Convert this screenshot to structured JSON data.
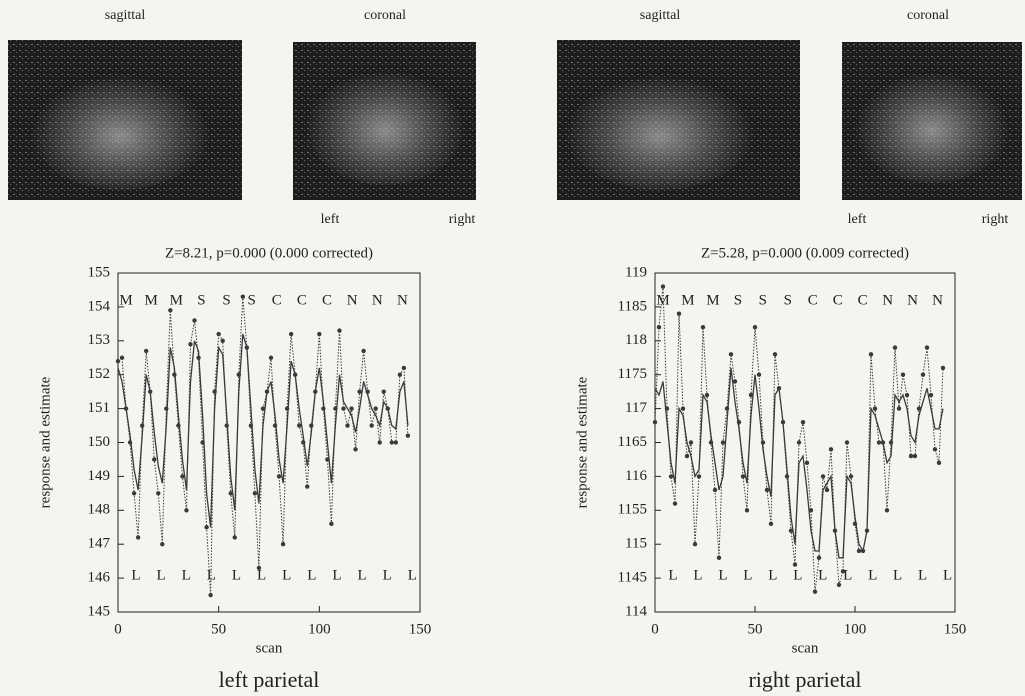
{
  "chart_data": [
    {
      "type": "line",
      "title": "Z=8.21, p=0.000 (0.000 corrected)",
      "xlabel": "scan",
      "ylabel": "response and estimate",
      "caption": "left parietal",
      "xlim": [
        0,
        150
      ],
      "xticks": [
        0,
        50,
        100,
        150
      ],
      "ylim": [
        145,
        155
      ],
      "yticks": [
        145,
        146,
        147,
        148,
        149,
        150,
        151,
        152,
        153,
        154,
        155
      ],
      "top_labels": [
        "M",
        "M",
        "M",
        "S",
        "S",
        "S",
        "C",
        "C",
        "C",
        "N",
        "N",
        "N"
      ],
      "bottom_labels": [
        "L",
        "L",
        "L",
        "L",
        "L",
        "L",
        "L",
        "L",
        "L",
        "L",
        "L",
        "L"
      ],
      "x": [
        0,
        2,
        4,
        6,
        8,
        10,
        12,
        14,
        16,
        18,
        20,
        22,
        24,
        26,
        28,
        30,
        32,
        34,
        36,
        38,
        40,
        42,
        44,
        46,
        48,
        50,
        52,
        54,
        56,
        58,
        60,
        62,
        64,
        66,
        68,
        70,
        72,
        74,
        76,
        78,
        80,
        82,
        84,
        86,
        88,
        90,
        92,
        94,
        96,
        98,
        100,
        102,
        104,
        106,
        108,
        110,
        112,
        114,
        116,
        118,
        120,
        122,
        124,
        126,
        128,
        130,
        132,
        134,
        136,
        138,
        140,
        142,
        144
      ],
      "series": [
        {
          "style": "dotted",
          "color": "#3a3a3a",
          "values": [
            152.4,
            152.5,
            151,
            150,
            148.5,
            147.2,
            150.5,
            152.7,
            151.5,
            149.5,
            148.5,
            147,
            151,
            153.9,
            152,
            150.5,
            149,
            148,
            152.9,
            153.6,
            152.5,
            150,
            147.5,
            145.5,
            151.5,
            153.2,
            153,
            150.5,
            148.5,
            147.2,
            152,
            154.3,
            152.8,
            150.5,
            148.5,
            146.3,
            151,
            151.5,
            152.5,
            150.5,
            149,
            147,
            151,
            153.2,
            152,
            150.5,
            150,
            148.7,
            150.5,
            151.5,
            153.2,
            151,
            149.5,
            147.6,
            151,
            153.3,
            151,
            150.5,
            151,
            149.8,
            151.5,
            152.7,
            151.5,
            150.5,
            151,
            150,
            151.5,
            151,
            150,
            150,
            152,
            152.2,
            150.2
          ]
        },
        {
          "style": "solid",
          "color": "#3a3a3a",
          "values": [
            152.2,
            151.8,
            151,
            150.2,
            149.2,
            148.6,
            150.2,
            152,
            151.5,
            150.3,
            149.3,
            148.8,
            150.5,
            152.8,
            152.2,
            150.8,
            149.5,
            148.6,
            151.8,
            153,
            152.7,
            150.8,
            148.5,
            147.5,
            151,
            152.8,
            152.6,
            150.8,
            149,
            148,
            151.5,
            153.2,
            152.8,
            151,
            149.2,
            148.2,
            150.5,
            151.5,
            151.8,
            150.8,
            149.5,
            148.8,
            150.5,
            152.4,
            152,
            151,
            150.2,
            149.3,
            150.3,
            151.5,
            152.2,
            151.2,
            150,
            148.8,
            150.5,
            152,
            151.2,
            151,
            150.8,
            150.3,
            151,
            151.8,
            151.4,
            151,
            150.8,
            150.5,
            151.2,
            151,
            150.5,
            150.4,
            151.5,
            151.8,
            150.5
          ]
        }
      ]
    },
    {
      "type": "line",
      "title": "Z=5.28, p=0.000 (0.009 corrected)",
      "xlabel": "scan",
      "ylabel": "response and estimate",
      "caption": "right parietal",
      "xlim": [
        0,
        150
      ],
      "xticks": [
        0,
        50,
        100,
        150
      ],
      "ylim": [
        114,
        119
      ],
      "yticks": [
        114,
        {
          "value": 114.5,
          "label": "1145"
        },
        115,
        {
          "value": 115.5,
          "label": "1155"
        },
        116,
        {
          "value": 116.5,
          "label": "1165"
        },
        117,
        {
          "value": 117.5,
          "label": "1175"
        },
        118,
        {
          "value": 118.5,
          "label": "1185"
        },
        119
      ],
      "top_labels": [
        "M",
        "M",
        "M",
        "S",
        "S",
        "S",
        "C",
        "C",
        "C",
        "N",
        "N",
        "N"
      ],
      "bottom_labels": [
        "L",
        "L",
        "L",
        "L",
        "L",
        "L",
        "L",
        "L",
        "L",
        "L",
        "L",
        "L"
      ],
      "x": [
        0,
        2,
        4,
        6,
        8,
        10,
        12,
        14,
        16,
        18,
        20,
        22,
        24,
        26,
        28,
        30,
        32,
        34,
        36,
        38,
        40,
        42,
        44,
        46,
        48,
        50,
        52,
        54,
        56,
        58,
        60,
        62,
        64,
        66,
        68,
        70,
        72,
        74,
        76,
        78,
        80,
        82,
        84,
        86,
        88,
        90,
        92,
        94,
        96,
        98,
        100,
        102,
        104,
        106,
        108,
        110,
        112,
        114,
        116,
        118,
        120,
        122,
        124,
        126,
        128,
        130,
        132,
        134,
        136,
        138,
        140,
        142,
        144
      ],
      "series": [
        {
          "style": "dotted",
          "color": "#3a3a3a",
          "values": [
            116.8,
            118.2,
            118.8,
            117,
            116,
            115.6,
            118.4,
            117,
            116.3,
            116.5,
            115,
            116,
            118.2,
            117.2,
            116.5,
            115.8,
            114.8,
            116.5,
            117,
            117.8,
            117.4,
            116.8,
            116,
            115.5,
            117.2,
            118.2,
            117.5,
            116.5,
            115.8,
            115.3,
            117.8,
            117.3,
            116.8,
            116,
            115.2,
            114.7,
            116.5,
            116.8,
            116.2,
            115.5,
            114.3,
            114.8,
            116,
            115.8,
            116.4,
            115.2,
            114.4,
            114.6,
            116.5,
            116,
            115.3,
            114.9,
            114.9,
            115.2,
            117.8,
            117,
            116.5,
            116.5,
            115.5,
            116.5,
            117.9,
            117,
            117.5,
            117.2,
            116.3,
            116.3,
            117,
            117.5,
            117.9,
            117.2,
            116.4,
            116.2,
            117.6
          ]
        },
        {
          "style": "solid",
          "color": "#3a3a3a",
          "values": [
            117.3,
            117.2,
            117.4,
            116.8,
            116.2,
            115.9,
            117,
            116.9,
            116.5,
            116.3,
            116,
            116.1,
            117.2,
            117.1,
            116.6,
            116.2,
            115.8,
            116,
            116.8,
            117.6,
            117.1,
            116.7,
            116.2,
            115.9,
            116.9,
            117.5,
            117,
            116.4,
            116,
            115.7,
            117.2,
            117.3,
            116.8,
            116.1,
            115.4,
            115,
            116.2,
            116.3,
            115.8,
            115.2,
            114.9,
            114.9,
            115.8,
            115.9,
            116,
            115.2,
            114.8,
            114.8,
            116,
            115.9,
            115.4,
            115,
            114.9,
            115.2,
            117,
            116.9,
            116.7,
            116.5,
            116.2,
            116.3,
            117.2,
            117.1,
            117.2,
            117,
            116.6,
            116.5,
            116.9,
            117.1,
            117.3,
            117,
            116.7,
            116.7,
            117
          ]
        }
      ]
    }
  ],
  "images": [
    {
      "views": [
        "sagittal",
        "coronal"
      ],
      "sides": [
        "left",
        "right"
      ]
    },
    {
      "views": [
        "sagittal",
        "coronal"
      ],
      "sides": [
        "left",
        "right"
      ]
    }
  ]
}
